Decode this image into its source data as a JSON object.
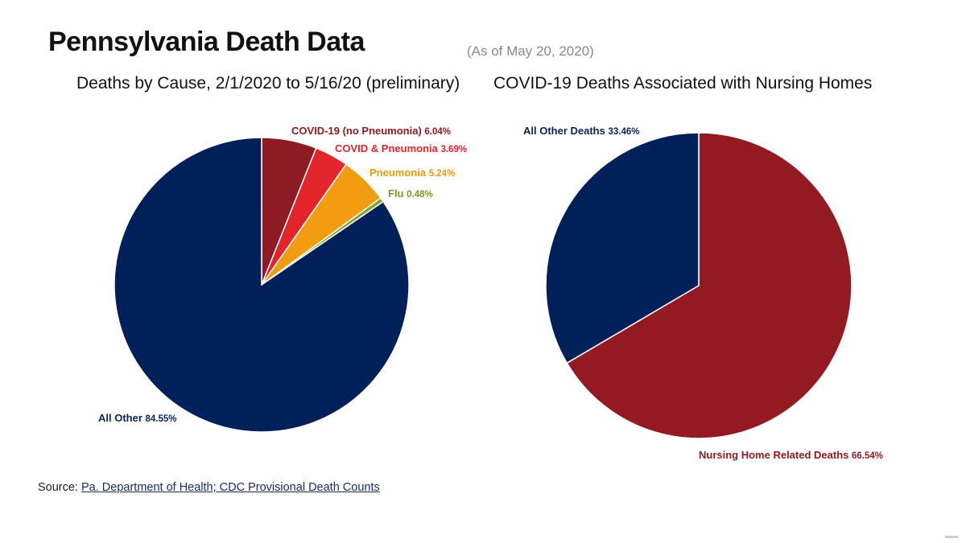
{
  "header": {
    "title": "Pennsylvania Death Data",
    "as_of": "(As of May 20, 2020)"
  },
  "chart_data": [
    {
      "type": "pie",
      "title": "Deaths by Cause,  2/1/2020 to 5/16/20 (preliminary)",
      "slices": [
        {
          "label": "COVID-19 (no Pneumonia)",
          "value": 6.04,
          "display": "6.04%",
          "color": "#8e1a23",
          "label_color": "#8e1a23"
        },
        {
          "label": "COVID & Pneumonia",
          "value": 3.69,
          "display": "3.69%",
          "color": "#e3242b",
          "label_color": "#e3242b"
        },
        {
          "label": "Pneumonia",
          "value": 5.24,
          "display": "5.24%",
          "color": "#f39c12",
          "label_color": "#e89b0c"
        },
        {
          "label": "Flu",
          "value": 0.48,
          "display": "0.48%",
          "color": "#7ea62a",
          "label_color": "#7a9a1e"
        },
        {
          "label": "All Other",
          "value": 84.55,
          "display": "84.55%",
          "color": "#00205b",
          "label_color": "#0a2456"
        }
      ]
    },
    {
      "type": "pie",
      "title": "COVID-19 Deaths Associated with Nursing Homes",
      "slices": [
        {
          "label": "Nursing Home Related Deaths",
          "value": 66.54,
          "display": "66.54%",
          "color": "#941a22",
          "label_color": "#941a22"
        },
        {
          "label": "All Other Deaths",
          "value": 33.46,
          "display": "33.46%",
          "color": "#00205b",
          "label_color": "#0a2456"
        }
      ]
    }
  ],
  "source": {
    "prefix": "Source: ",
    "link_text": "Pa. Department of Health; CDC Provisional Death Counts"
  }
}
